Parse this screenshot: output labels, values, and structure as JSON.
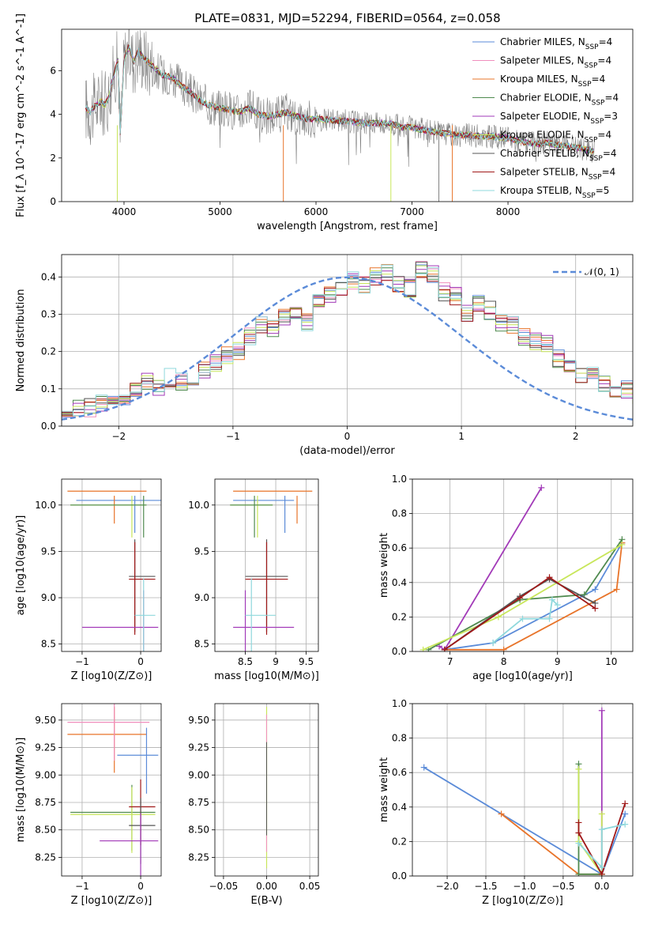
{
  "title": "PLATE=0831, MJD=52294, FIBERID=0564, z=0.058",
  "colors": {
    "Chabrier MILES": "#5b8bd8",
    "Salpeter MILES": "#f08fbd",
    "Kroupa MILES": "#e8742a",
    "Chabrier ELODIE": "#4f8a4f",
    "Salpeter ELODIE": "#a23ab8",
    "Kroupa ELODIE": "#c8e65a",
    "Chabrier STELIB": "#555555",
    "Salpeter STELIB": "#a01818",
    "Kroupa STELIB": "#8fd8dc",
    "data": "#808080",
    "normal": "#5b8bd8"
  },
  "chart_data": [
    {
      "id": "spectrum",
      "type": "line",
      "title": "PLATE=0831, MJD=52294, FIBERID=0564, z=0.058",
      "xlabel": "wavelength [Angstrom, rest frame]",
      "ylabel": "Flux [f_λ 10^-17 erg cm^-2 s^-1 A^-1]",
      "xlim": [
        3350,
        9300
      ],
      "ylim": [
        0,
        7.9
      ],
      "xticks": [
        4000,
        5000,
        6000,
        7000,
        8000
      ],
      "yticks": [
        0,
        2,
        4,
        6
      ],
      "grid": false,
      "legend_position": "top-right",
      "legend": [
        "Chabrier MILES, N_SSP=4",
        "Salpeter MILES, N_SSP=4",
        "Kroupa MILES, N_SSP=4",
        "Chabrier ELODIE, N_SSP=4",
        "Salpeter ELODIE, N_SSP=3",
        "Kroupa ELODIE, N_SSP=4",
        "Chabrier STELIB, N_SSP=4",
        "Salpeter STELIB, N_SSP=4",
        "Kroupa STELIB, N_SSP=5"
      ],
      "model_continuum": {
        "x": [
          3600,
          3650,
          3700,
          3760,
          3800,
          3850,
          3880,
          3940,
          3960,
          4000,
          4050,
          4100,
          4150,
          4200,
          4300,
          4400,
          4500,
          4600,
          4700,
          4800,
          4900,
          5000,
          5100,
          5200,
          5300,
          5400,
          5500,
          5600,
          5700,
          5800,
          5900,
          6000,
          6100,
          6200,
          6300,
          6400,
          6500,
          6600,
          6700,
          6800,
          6900,
          7000,
          7100,
          7200,
          7300,
          7400,
          7500,
          7600,
          7700,
          7800,
          7900,
          8000,
          8100,
          8200,
          8300,
          8400,
          8500,
          8600,
          8700,
          8800,
          8900
        ],
        "y": [
          4.3,
          4.1,
          4.4,
          4.6,
          4.4,
          4.9,
          5.6,
          6.5,
          3.0,
          6.5,
          7.1,
          6.4,
          6.9,
          6.6,
          6.2,
          5.8,
          5.7,
          5.3,
          5.0,
          4.6,
          4.4,
          4.3,
          4.2,
          4.1,
          4.3,
          4.0,
          3.9,
          4.0,
          4.1,
          3.9,
          3.8,
          3.8,
          3.75,
          3.7,
          3.7,
          3.65,
          3.6,
          3.6,
          3.6,
          3.55,
          3.4,
          3.4,
          3.3,
          3.2,
          3.15,
          3.1,
          3.05,
          3.05,
          3.0,
          3.0,
          2.95,
          2.9,
          2.8,
          2.7,
          2.65,
          2.7,
          2.6,
          2.55,
          2.5,
          2.4,
          2.3
        ]
      }
    },
    {
      "id": "residuals",
      "type": "histogram",
      "xlabel": "(data-model)/error",
      "ylabel": "Normed distribution",
      "xlim": [
        -2.5,
        2.5
      ],
      "ylim": [
        0,
        0.46
      ],
      "xticks": [
        -2,
        -1,
        0,
        1,
        2
      ],
      "yticks": [
        0.0,
        0.1,
        0.2,
        0.3,
        0.4
      ],
      "grid": true,
      "legend_position": "top-right",
      "legend": [
        "N(0,1)"
      ],
      "bin_width": 0.1,
      "bin_start": -2.5,
      "approx_heights": [
        0.04,
        0.045,
        0.05,
        0.06,
        0.07,
        0.08,
        0.1,
        0.12,
        0.1,
        0.13,
        0.12,
        0.12,
        0.15,
        0.17,
        0.19,
        0.2,
        0.24,
        0.27,
        0.26,
        0.29,
        0.3,
        0.28,
        0.33,
        0.35,
        0.37,
        0.39,
        0.38,
        0.4,
        0.41,
        0.38,
        0.37,
        0.42,
        0.41,
        0.36,
        0.35,
        0.3,
        0.33,
        0.31,
        0.28,
        0.27,
        0.24,
        0.23,
        0.22,
        0.18,
        0.17,
        0.14,
        0.14,
        0.11,
        0.09,
        0.1,
        0.08,
        0.07,
        0.06,
        0.06,
        0.05,
        0.04,
        0.035,
        0.03,
        0.025,
        0.02
      ]
    },
    {
      "id": "age-vs-Z",
      "type": "scatter",
      "xlabel": "Z [log10(Z/Z⊙)]",
      "ylabel": "age  [log10(age/yr)]",
      "xlim": [
        -1.35,
        0.35
      ],
      "ylim": [
        8.42,
        10.28
      ],
      "xticks": [
        -1,
        0
      ],
      "yticks": [
        8.5,
        9.0,
        9.5,
        10.0
      ],
      "grid": true
    },
    {
      "id": "age-vs-mass",
      "type": "scatter",
      "xlabel": "mass [log10(M/M⊙)]",
      "ylabel": "",
      "xlim": [
        8.0,
        9.7
      ],
      "ylim": [
        8.42,
        10.28
      ],
      "xticks": [
        8.5,
        9.0,
        9.5
      ],
      "yticks": [
        8.5,
        9.0,
        9.5,
        10.0
      ],
      "grid": true
    },
    {
      "id": "weight-vs-age",
      "type": "line",
      "xlabel": "age  [log10(age/yr)]",
      "ylabel": "mass weight",
      "xlim": [
        6.3,
        10.4
      ],
      "ylim": [
        0,
        1.0
      ],
      "xticks": [
        7,
        8,
        9,
        10
      ],
      "yticks": [
        0.0,
        0.2,
        0.4,
        0.6,
        0.8,
        1.0
      ],
      "grid": true,
      "series": [
        {
          "name": "Chabrier MILES",
          "x": [
            6.9,
            7.8,
            9.7,
            10.2
          ],
          "y": [
            0.01,
            0.05,
            0.36,
            0.63
          ]
        },
        {
          "name": "Kroupa MILES",
          "x": [
            6.9,
            8.0,
            10.1,
            10.2
          ],
          "y": [
            0.01,
            0.01,
            0.36,
            0.63
          ]
        },
        {
          "name": "Salpeter ELODIE",
          "x": [
            6.8,
            6.9,
            8.7
          ],
          "y": [
            0.03,
            0.01,
            0.95
          ]
        },
        {
          "name": "Chabrier ELODIE",
          "x": [
            6.6,
            8.3,
            9.5,
            10.2
          ],
          "y": [
            0.01,
            0.3,
            0.33,
            0.65
          ]
        },
        {
          "name": "Kroupa ELODIE",
          "x": [
            6.5,
            7.9,
            10.2
          ],
          "y": [
            0.01,
            0.2,
            0.62
          ]
        },
        {
          "name": "Chabrier STELIB",
          "x": [
            6.9,
            8.3,
            8.85,
            9.7
          ],
          "y": [
            0.01,
            0.32,
            0.42,
            0.28
          ]
        },
        {
          "name": "Salpeter STELIB",
          "x": [
            6.9,
            8.3,
            8.85,
            9.7
          ],
          "y": [
            0.01,
            0.31,
            0.43,
            0.25
          ]
        },
        {
          "name": "Kroupa STELIB",
          "x": [
            7.8,
            8.35,
            8.85,
            8.9,
            9.0
          ],
          "y": [
            0.05,
            0.19,
            0.19,
            0.3,
            0.27
          ]
        }
      ]
    },
    {
      "id": "mass-vs-Z",
      "type": "scatter",
      "xlabel": "Z [log10(Z/Z⊙)]",
      "ylabel": "mass [log10(M/M⊙)]",
      "xlim": [
        -1.35,
        0.35
      ],
      "ylim": [
        8.08,
        9.65
      ],
      "xticks": [
        -1,
        0
      ],
      "yticks": [
        8.25,
        8.5,
        8.75,
        9.0,
        9.25,
        9.5
      ],
      "grid": true
    },
    {
      "id": "mass-vs-ebv",
      "type": "scatter",
      "xlabel": "E(B-V)",
      "ylabel": "",
      "xlim": [
        -0.06,
        0.06
      ],
      "ylim": [
        8.08,
        9.65
      ],
      "xticks": [
        -0.05,
        0.0,
        0.05
      ],
      "yticks": [
        8.25,
        8.5,
        8.75,
        9.0,
        9.25,
        9.5
      ],
      "grid": true
    },
    {
      "id": "weight-vs-Z",
      "type": "line",
      "xlabel": "Z [log10(Z/Z⊙)]",
      "ylabel": "mass weight",
      "xlim": [
        -2.45,
        0.4
      ],
      "ylim": [
        0,
        1.0
      ],
      "xticks": [
        -2.0,
        -1.5,
        -1.0,
        -0.5,
        0.0
      ],
      "yticks": [
        0.0,
        0.2,
        0.4,
        0.6,
        0.8,
        1.0
      ],
      "grid": true,
      "series": [
        {
          "name": "Chabrier MILES",
          "x": [
            -2.3,
            0.0,
            0.3
          ],
          "y": [
            0.63,
            0.01,
            0.36
          ]
        },
        {
          "name": "Kroupa MILES",
          "x": [
            -1.3,
            -0.3,
            0.0
          ],
          "y": [
            0.36,
            0.01,
            0.01
          ]
        },
        {
          "name": "Salpeter ELODIE",
          "x": [
            0.0,
            0.0
          ],
          "y": [
            0.01,
            0.96
          ]
        },
        {
          "name": "Chabrier ELODIE",
          "x": [
            -0.3,
            -0.3,
            0.0
          ],
          "y": [
            0.65,
            0.01,
            0.01
          ]
        },
        {
          "name": "Kroupa ELODIE",
          "x": [
            -0.3,
            -0.3,
            0.0,
            0.0
          ],
          "y": [
            0.62,
            0.2,
            0.01,
            0.36
          ]
        },
        {
          "name": "Salpeter STELIB",
          "x": [
            -0.3,
            -0.3,
            0.0,
            0.3
          ],
          "y": [
            0.31,
            0.25,
            0.01,
            0.42
          ]
        },
        {
          "name": "Kroupa STELIB",
          "x": [
            -0.3,
            0.0,
            0.0,
            0.3
          ],
          "y": [
            0.19,
            0.05,
            0.27,
            0.3
          ]
        }
      ]
    }
  ]
}
